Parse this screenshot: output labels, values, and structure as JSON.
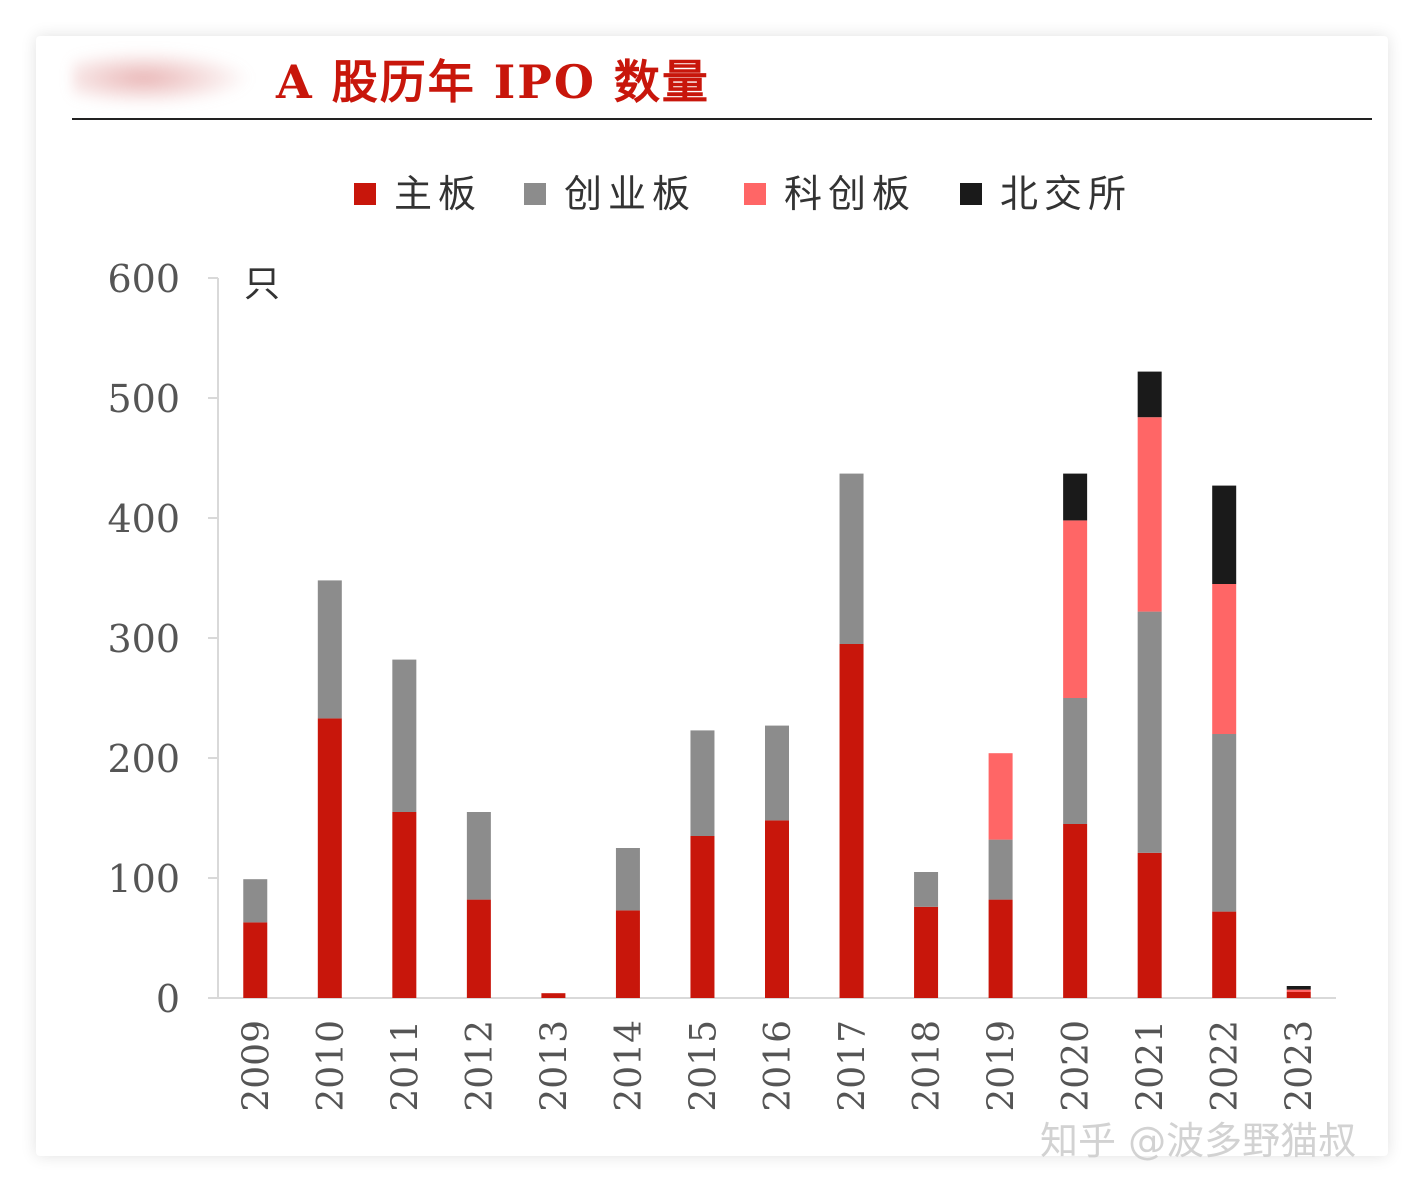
{
  "header": {
    "title": "A 股历年 IPO 数量"
  },
  "watermark": "知乎 @波多野猫叔",
  "chart_data": {
    "type": "bar",
    "stacked": true,
    "unit_label": "只",
    "categories": [
      "2009",
      "2010",
      "2011",
      "2012",
      "2013",
      "2014",
      "2015",
      "2016",
      "2017",
      "2018",
      "2019",
      "2020",
      "2021",
      "2022",
      "2023"
    ],
    "series": [
      {
        "name": "主板",
        "color": "#c8160b",
        "values": [
          63,
          233,
          155,
          82,
          4,
          73,
          135,
          148,
          295,
          76,
          82,
          145,
          121,
          72,
          5
        ]
      },
      {
        "name": "创业板",
        "color": "#8c8c8c",
        "values": [
          36,
          115,
          127,
          73,
          0,
          52,
          88,
          79,
          142,
          29,
          50,
          105,
          201,
          148,
          0
        ]
      },
      {
        "name": "科创板",
        "color": "#ff6666",
        "values": [
          0,
          0,
          0,
          0,
          0,
          0,
          0,
          0,
          0,
          0,
          72,
          148,
          162,
          125,
          2
        ]
      },
      {
        "name": "北交所",
        "color": "#1a1a1a",
        "values": [
          0,
          0,
          0,
          0,
          0,
          0,
          0,
          0,
          0,
          0,
          0,
          39,
          38,
          82,
          3
        ]
      }
    ],
    "ylim": [
      0,
      600
    ],
    "yticks": [
      0,
      100,
      200,
      300,
      400,
      500,
      600
    ],
    "legend_position": "top-center",
    "grid": false
  }
}
